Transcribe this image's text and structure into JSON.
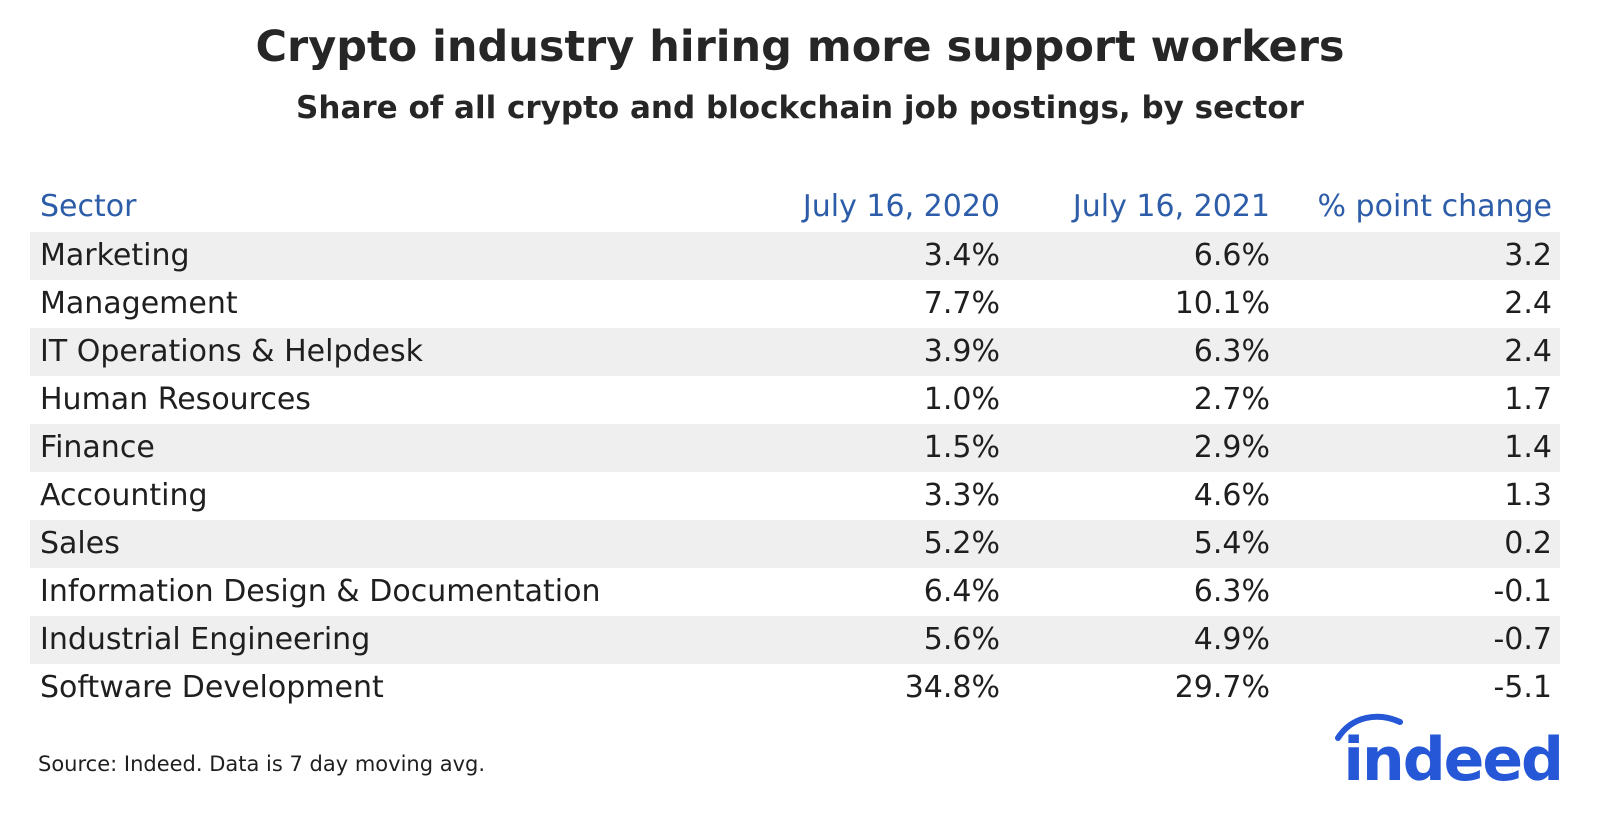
{
  "chart_data": {
    "type": "table",
    "title": "Crypto industry hiring more support workers",
    "subtitle": "Share of all crypto and blockchain job postings, by sector",
    "columns": [
      "Sector",
      "July 16, 2020",
      "July 16, 2021",
      "% point change"
    ],
    "rows": [
      {
        "sector": "Marketing",
        "v2020": "3.4%",
        "v2021": "6.6%",
        "change": "3.2"
      },
      {
        "sector": "Management",
        "v2020": "7.7%",
        "v2021": "10.1%",
        "change": "2.4"
      },
      {
        "sector": "IT Operations & Helpdesk",
        "v2020": "3.9%",
        "v2021": "6.3%",
        "change": "2.4"
      },
      {
        "sector": "Human Resources",
        "v2020": "1.0%",
        "v2021": "2.7%",
        "change": "1.7"
      },
      {
        "sector": "Finance",
        "v2020": "1.5%",
        "v2021": "2.9%",
        "change": "1.4"
      },
      {
        "sector": "Accounting",
        "v2020": "3.3%",
        "v2021": "4.6%",
        "change": "1.3"
      },
      {
        "sector": "Sales",
        "v2020": "5.2%",
        "v2021": "5.4%",
        "change": "0.2"
      },
      {
        "sector": "Information Design & Documentation",
        "v2020": "6.4%",
        "v2021": "6.3%",
        "change": "-0.1"
      },
      {
        "sector": "Industrial Engineering",
        "v2020": "5.6%",
        "v2021": "4.9%",
        "change": "-0.7"
      },
      {
        "sector": "Software Development",
        "v2020": "34.8%",
        "v2021": "29.7%",
        "change": "-5.1"
      }
    ],
    "source": "Source: Indeed. Data is 7 day moving avg."
  },
  "logo": {
    "text": "indeed",
    "color": "#2557d6"
  },
  "colors": {
    "header_text": "#2d5da8",
    "row_shade": "#efefef"
  }
}
